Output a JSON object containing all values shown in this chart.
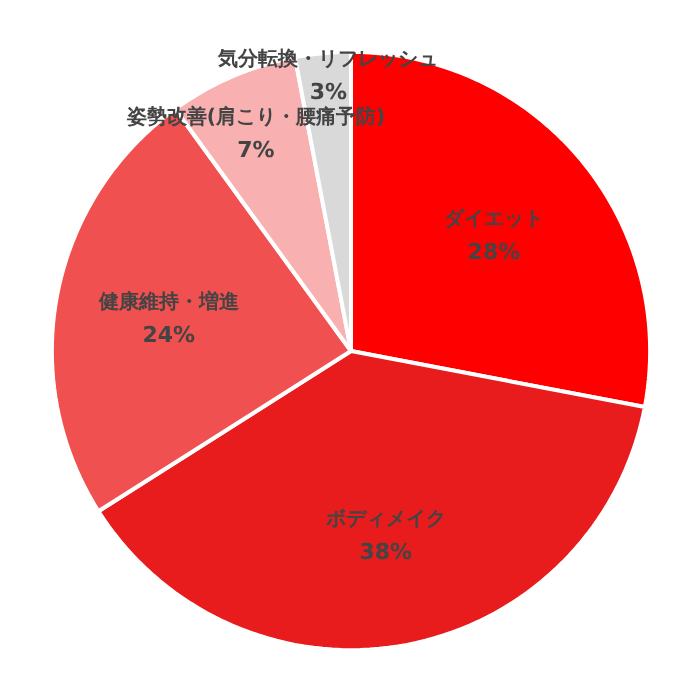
{
  "chart_data": {
    "type": "pie",
    "categories": [
      "ダイエット",
      "ボディメイク",
      "健康維持・増進",
      "姿勢改善(肩こり・腰痛予防)",
      "気分転換・リフレッシュ"
    ],
    "values": [
      28,
      38,
      24,
      7,
      3
    ],
    "value_labels": [
      "28%",
      "38%",
      "24%",
      "7%",
      "3%"
    ],
    "colors": [
      "#ff0000",
      "#e81c1c",
      "#f05050",
      "#f8b0b0",
      "#d9d9d9"
    ]
  }
}
